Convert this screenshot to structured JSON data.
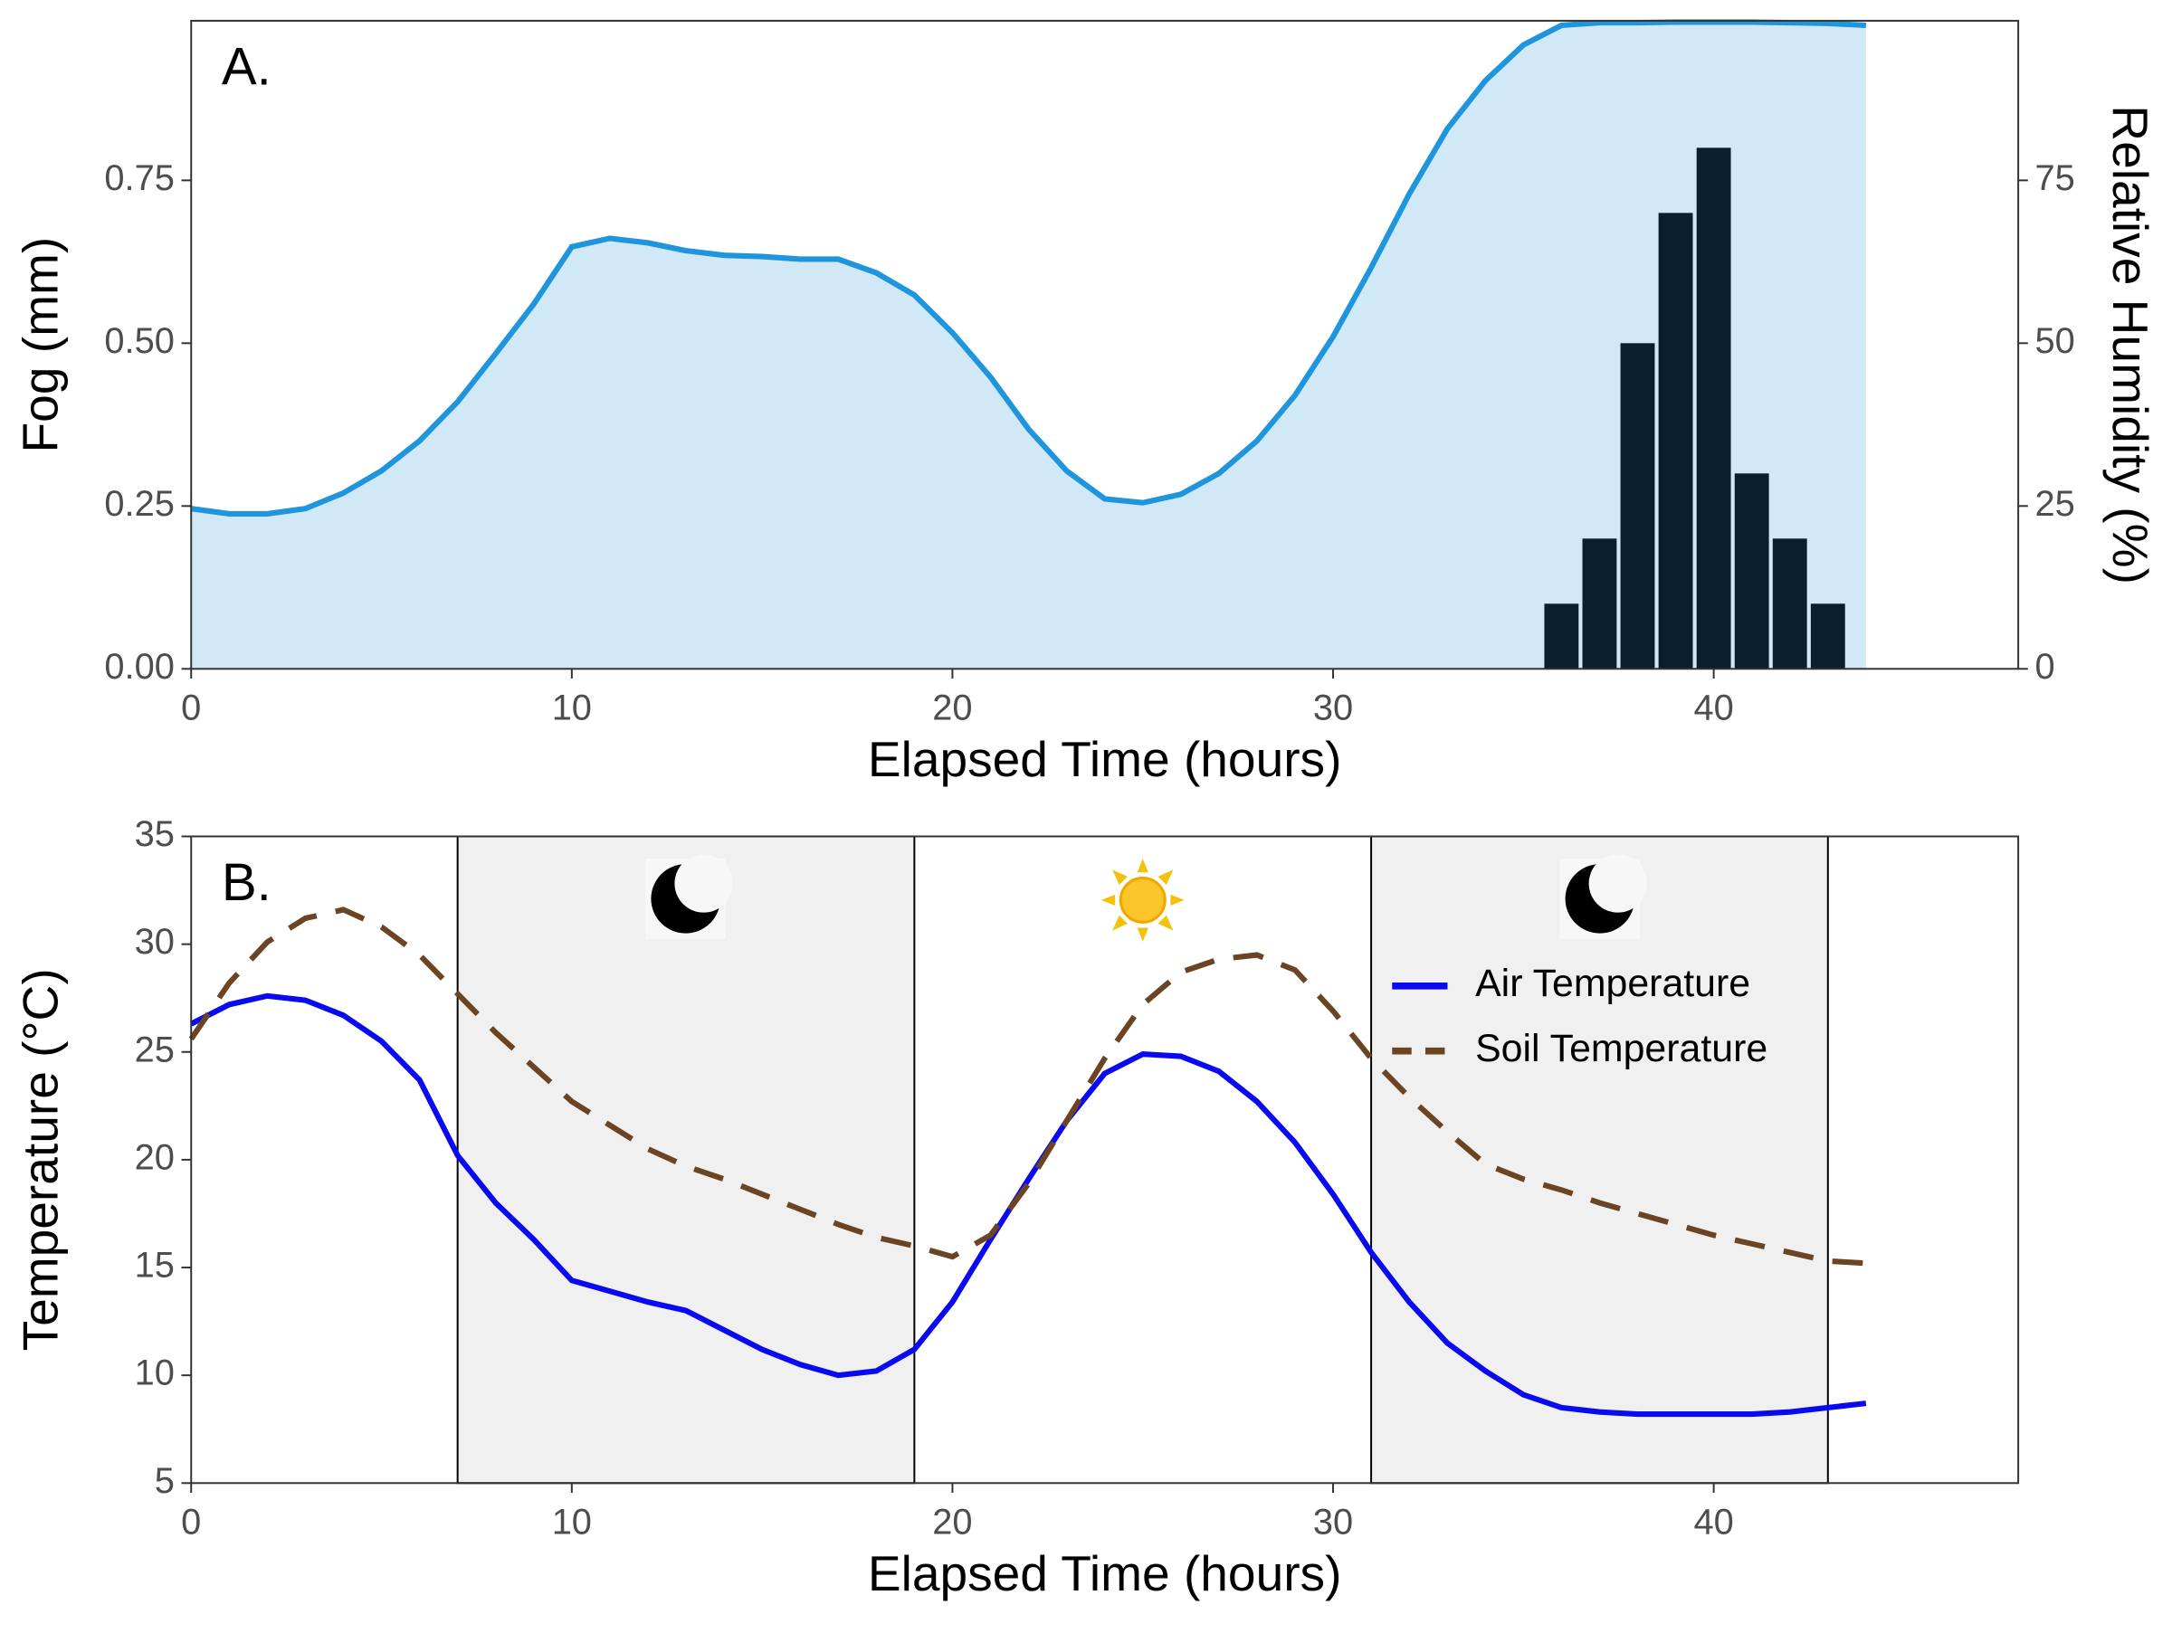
{
  "chart_data": [
    {
      "type": "combo",
      "title": "A.",
      "xlabel": "Elapsed Time (hours)",
      "ylabel": "Fog (mm)",
      "y2label": "Relative Humidity (%)",
      "xlim": [
        0,
        48
      ],
      "xticks": [
        0,
        10,
        20,
        30,
        40
      ],
      "ylim": [
        0,
        0.995
      ],
      "yticks": [
        {
          "value": 0,
          "label": "0.00"
        },
        {
          "value": 0.25,
          "label": "0.25"
        },
        {
          "value": 0.5,
          "label": "0.50"
        },
        {
          "value": 0.75,
          "label": "0.75"
        }
      ],
      "y2lim": [
        0,
        99.5
      ],
      "y2ticks": [
        0,
        25,
        50,
        75
      ],
      "series": [
        {
          "type": "area",
          "axis": "y2",
          "color": "#1e95dd",
          "fill": "#d1e8f7",
          "x": [
            0,
            1,
            2,
            3,
            4,
            5,
            6,
            7,
            8,
            9,
            10,
            11,
            12,
            13,
            14,
            15,
            16,
            17,
            18,
            19,
            20,
            21,
            22,
            23,
            24,
            25,
            26,
            27,
            28,
            29,
            30,
            31,
            32,
            33,
            34,
            35,
            36,
            37,
            38,
            39,
            40,
            41,
            42,
            43,
            44
          ],
          "values": [
            24.6,
            23.8,
            23.8,
            24.6,
            27,
            30.4,
            35,
            41,
            48.4,
            56,
            64.8,
            66.1,
            65.4,
            64.2,
            63.5,
            63.3,
            62.9,
            62.9,
            60.8,
            57.4,
            51.6,
            44.8,
            36.8,
            30.4,
            26.1,
            25.5,
            26.8,
            30,
            35,
            42,
            51,
            61.6,
            72.9,
            82.9,
            90.3,
            95.8,
            98.8,
            99.2,
            99.2,
            99.3,
            99.3,
            99.3,
            99.2,
            99.1,
            98.8
          ]
        },
        {
          "type": "bar",
          "color": "#0a1f2e",
          "x": [
            36,
            37,
            38,
            39,
            40,
            41,
            42,
            43
          ],
          "values": [
            0.1,
            0.2,
            0.5,
            0.7,
            0.8,
            0.3,
            0.2,
            0.1
          ]
        }
      ]
    },
    {
      "type": "line",
      "title": "B.",
      "xlabel": "Elapsed Time (hours)",
      "ylabel": "Temperature (°C)",
      "xlim": [
        0,
        48
      ],
      "xticks": [
        0,
        10,
        20,
        30,
        40
      ],
      "ylim": [
        5,
        35
      ],
      "yticks": [
        5,
        10,
        15,
        20,
        25,
        30,
        35
      ],
      "shaded": [
        [
          7,
          19
        ],
        [
          31,
          43
        ]
      ],
      "shade_color": "#f0f0f0",
      "legend": "top-right",
      "x": [
        0,
        1,
        2,
        3,
        4,
        5,
        6,
        7,
        8,
        9,
        10,
        11,
        12,
        13,
        14,
        15,
        16,
        17,
        18,
        19,
        20,
        21,
        22,
        23,
        24,
        25,
        26,
        27,
        28,
        29,
        30,
        31,
        32,
        33,
        34,
        35,
        36,
        37,
        38,
        39,
        40,
        41,
        42,
        43,
        44
      ],
      "series": [
        {
          "name": "Air Temperature",
          "color": "#0a0af0",
          "dash": false,
          "values": [
            26.3,
            27.2,
            27.6,
            27.4,
            26.7,
            25.5,
            23.7,
            20.2,
            18.0,
            16.3,
            14.4,
            13.9,
            13.4,
            13.0,
            12.1,
            11.2,
            10.5,
            10.0,
            10.2,
            11.2,
            13.4,
            16.3,
            19.1,
            21.8,
            24.0,
            24.9,
            24.8,
            24.1,
            22.7,
            20.8,
            18.4,
            15.7,
            13.4,
            11.5,
            10.2,
            9.1,
            8.5,
            8.3,
            8.2,
            8.2,
            8.2,
            8.2,
            8.3,
            8.5,
            8.7
          ]
        },
        {
          "name": "Soil Temperature",
          "color": "#6b4423",
          "dash": true,
          "values": [
            25.6,
            28.2,
            30.1,
            31.2,
            31.6,
            30.8,
            29.5,
            27.7,
            25.9,
            24.3,
            22.7,
            21.6,
            20.5,
            19.7,
            19.1,
            18.4,
            17.7,
            17.0,
            16.4,
            16.0,
            15.5,
            16.5,
            18.9,
            21.8,
            24.7,
            27.2,
            28.7,
            29.3,
            29.5,
            28.8,
            26.9,
            24.7,
            22.9,
            21.3,
            19.8,
            19.1,
            18.6,
            18.0,
            17.5,
            17.0,
            16.5,
            16.1,
            15.7,
            15.3,
            15.2
          ]
        }
      ]
    }
  ]
}
